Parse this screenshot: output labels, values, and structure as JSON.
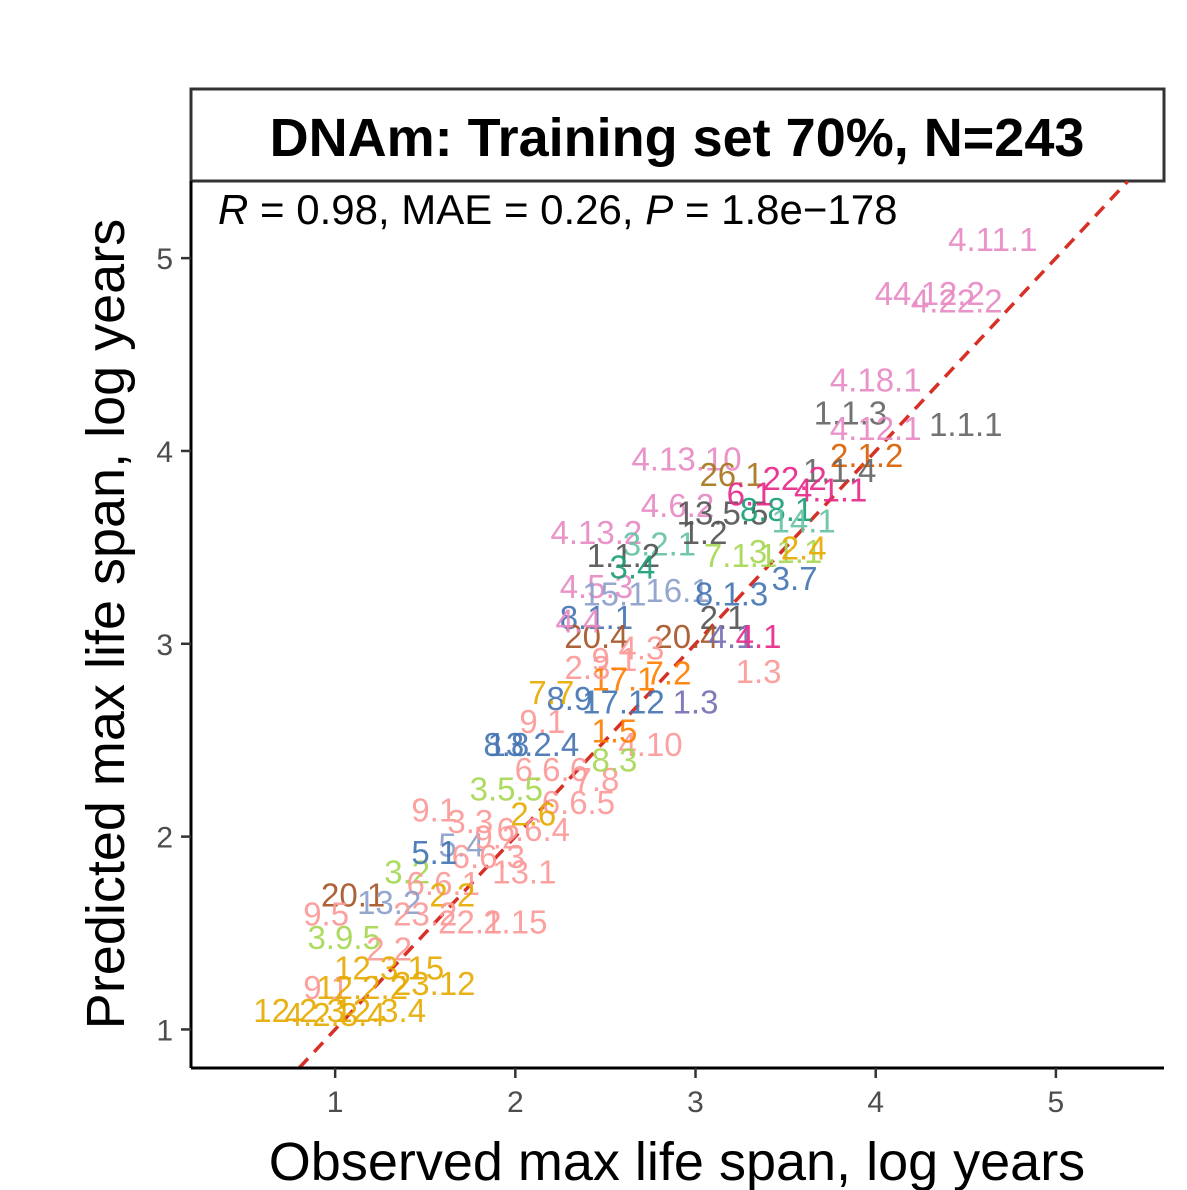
{
  "chart_data": {
    "type": "scatter",
    "title": "DNAm: Training set 70%, N=243",
    "stats": {
      "r_label": "R",
      "r_text": " = 0.98, MAE = 0.26, ",
      "p_label": "P",
      "p_text": " = 1.8e−178"
    },
    "xlabel": "Observed max life span, log years",
    "ylabel": "Predicted max life span, log years",
    "xlim": [
      0.2,
      5.6
    ],
    "ylim": [
      0.8,
      5.4
    ],
    "x_ticks": [
      "1",
      "2",
      "3",
      "4",
      "5"
    ],
    "y_ticks": [
      "1",
      "2",
      "3",
      "4",
      "5"
    ],
    "reference_line": {
      "type": "identity",
      "color": "#d73027",
      "style": "dashed"
    },
    "grid": false,
    "points": [
      {
        "label": "4.11.1",
        "x": 4.65,
        "y": 5.1,
        "color": "#e78ac3"
      },
      {
        "label": "44.12.2",
        "x": 4.3,
        "y": 4.82,
        "color": "#e78ac3"
      },
      {
        "label": "4.22.2",
        "x": 4.45,
        "y": 4.78,
        "color": "#e78ac3"
      },
      {
        "label": "4.18.1",
        "x": 4.0,
        "y": 4.37,
        "color": "#e78ac3"
      },
      {
        "label": "1.1.3",
        "x": 3.86,
        "y": 4.2,
        "color": "#666666"
      },
      {
        "label": "1.1.1",
        "x": 4.5,
        "y": 4.14,
        "color": "#666666"
      },
      {
        "label": "4.12.1",
        "x": 4.0,
        "y": 4.12,
        "color": "#e78ac3"
      },
      {
        "label": "2.1.2",
        "x": 3.95,
        "y": 3.98,
        "color": "#d95f02"
      },
      {
        "label": "1.1.4",
        "x": 3.8,
        "y": 3.9,
        "color": "#666666"
      },
      {
        "label": "4.13.10",
        "x": 2.95,
        "y": 3.96,
        "color": "#e78ac3"
      },
      {
        "label": "26.1",
        "x": 3.2,
        "y": 3.88,
        "color": "#a6761d"
      },
      {
        "label": "22.2",
        "x": 3.55,
        "y": 3.86,
        "color": "#e7298a"
      },
      {
        "label": "4.1.1",
        "x": 3.75,
        "y": 3.8,
        "color": "#e7298a"
      },
      {
        "label": "4.6.2",
        "x": 2.9,
        "y": 3.72,
        "color": "#e78ac3"
      },
      {
        "label": "13.5.5",
        "x": 3.15,
        "y": 3.68,
        "color": "#555555"
      },
      {
        "label": "8.8.1",
        "x": 3.45,
        "y": 3.7,
        "color": "#1b9e77"
      },
      {
        "label": "14.1",
        "x": 3.6,
        "y": 3.64,
        "color": "#66c2a5"
      },
      {
        "label": "4.13.2",
        "x": 2.45,
        "y": 3.58,
        "color": "#e78ac3"
      },
      {
        "label": "3.2.1",
        "x": 2.8,
        "y": 3.52,
        "color": "#66c2a5"
      },
      {
        "label": "1.1.2",
        "x": 2.6,
        "y": 3.46,
        "color": "#555555"
      },
      {
        "label": "7.1.1",
        "x": 3.25,
        "y": 3.46,
        "color": "#a6d854"
      },
      {
        "label": "3.1.1",
        "x": 3.5,
        "y": 3.48,
        "color": "#a6d854"
      },
      {
        "label": "2.4",
        "x": 3.6,
        "y": 3.5,
        "color": "#e6ab02"
      },
      {
        "label": "4.5.3",
        "x": 2.45,
        "y": 3.3,
        "color": "#e78ac3"
      },
      {
        "label": "15.1",
        "x": 2.55,
        "y": 3.26,
        "color": "#8da0cb"
      },
      {
        "label": "16.1",
        "x": 2.9,
        "y": 3.28,
        "color": "#8da0cb"
      },
      {
        "label": "8.1.3",
        "x": 3.2,
        "y": 3.26,
        "color": "#4575b4"
      },
      {
        "label": "3.7",
        "x": 3.55,
        "y": 3.34,
        "color": "#4575b4"
      },
      {
        "label": "8.1.1",
        "x": 2.45,
        "y": 3.14,
        "color": "#4575b4"
      },
      {
        "label": "2.1",
        "x": 3.15,
        "y": 3.14,
        "color": "#555555"
      },
      {
        "label": "20.4",
        "x": 2.45,
        "y": 3.04,
        "color": "#a65628"
      },
      {
        "label": "20.4",
        "x": 2.95,
        "y": 3.04,
        "color": "#a65628"
      },
      {
        "label": "4.1",
        "x": 3.2,
        "y": 3.04,
        "color": "#7570b3"
      },
      {
        "label": "4.1",
        "x": 3.35,
        "y": 3.04,
        "color": "#e7298a"
      },
      {
        "label": "9.1",
        "x": 2.55,
        "y": 2.92,
        "color": "#fb9a99"
      },
      {
        "label": "17.1",
        "x": 2.6,
        "y": 2.82,
        "color": "#ff7f00"
      },
      {
        "label": "7.2",
        "x": 2.85,
        "y": 2.85,
        "color": "#ff7f00"
      },
      {
        "label": "1.3",
        "x": 3.35,
        "y": 2.86,
        "color": "#fb9a99"
      },
      {
        "label": "8.9",
        "x": 2.3,
        "y": 2.72,
        "color": "#4575b4"
      },
      {
        "label": "17.12",
        "x": 2.6,
        "y": 2.7,
        "color": "#4575b4"
      },
      {
        "label": "1.3",
        "x": 3.0,
        "y": 2.7,
        "color": "#7570b3"
      },
      {
        "label": "9.1",
        "x": 2.15,
        "y": 2.6,
        "color": "#fb9a99"
      },
      {
        "label": "8.8",
        "x": 1.95,
        "y": 2.48,
        "color": "#4575b4"
      },
      {
        "label": "13.2.4",
        "x": 2.1,
        "y": 2.48,
        "color": "#4575b4"
      },
      {
        "label": "4.10",
        "x": 2.75,
        "y": 2.48,
        "color": "#fb9a99"
      },
      {
        "label": "6.6.6",
        "x": 2.2,
        "y": 2.35,
        "color": "#fb9a99"
      },
      {
        "label": "7.8",
        "x": 2.45,
        "y": 2.3,
        "color": "#fb9a99"
      },
      {
        "label": "3.5.5",
        "x": 1.95,
        "y": 2.25,
        "color": "#a6d854"
      },
      {
        "label": "6.6.5",
        "x": 2.35,
        "y": 2.18,
        "color": "#fb9a99"
      },
      {
        "label": "9.1",
        "x": 1.55,
        "y": 2.14,
        "color": "#fb9a99"
      },
      {
        "label": "3.3",
        "x": 1.75,
        "y": 2.08,
        "color": "#fb9a99"
      },
      {
        "label": "6.6.4",
        "x": 2.1,
        "y": 2.04,
        "color": "#fb9a99"
      },
      {
        "label": "5.4",
        "x": 1.7,
        "y": 1.96,
        "color": "#8da0cb"
      },
      {
        "label": "6.6.3",
        "x": 1.85,
        "y": 1.9,
        "color": "#fb9a99"
      },
      {
        "label": "3.2",
        "x": 1.4,
        "y": 1.82,
        "color": "#a6d854"
      },
      {
        "label": "6.6.1",
        "x": 1.6,
        "y": 1.76,
        "color": "#fb9a99"
      },
      {
        "label": "2.2",
        "x": 1.65,
        "y": 1.7,
        "color": "#e6ab02"
      },
      {
        "label": "20.1",
        "x": 1.1,
        "y": 1.7,
        "color": "#a65628"
      },
      {
        "label": "13.2",
        "x": 1.3,
        "y": 1.66,
        "color": "#8da0cb"
      },
      {
        "label": "9.5",
        "x": 0.95,
        "y": 1.6,
        "color": "#fb9a99"
      },
      {
        "label": "23.2",
        "x": 1.5,
        "y": 1.6,
        "color": "#fb9a99"
      },
      {
        "label": "22.1",
        "x": 1.75,
        "y": 1.56,
        "color": "#fb9a99"
      },
      {
        "label": "2.15",
        "x": 2.0,
        "y": 1.56,
        "color": "#fb9a99"
      },
      {
        "label": "3.9.5",
        "x": 1.05,
        "y": 1.48,
        "color": "#a6d854"
      },
      {
        "label": "2.2",
        "x": 1.3,
        "y": 1.42,
        "color": "#fb9a99"
      },
      {
        "label": "12.3.15",
        "x": 1.3,
        "y": 1.32,
        "color": "#e6ab02"
      },
      {
        "label": "9.1",
        "x": 0.95,
        "y": 1.22,
        "color": "#fb9a99"
      },
      {
        "label": "12.2.2",
        "x": 1.15,
        "y": 1.22,
        "color": "#e6ab02"
      },
      {
        "label": "23.12",
        "x": 1.55,
        "y": 1.24,
        "color": "#e6ab02"
      },
      {
        "label": "12.2.3",
        "x": 0.8,
        "y": 1.1,
        "color": "#e6ab02"
      },
      {
        "label": "4.2.3.4",
        "x": 1.0,
        "y": 1.08,
        "color": "#e6ab02"
      },
      {
        "label": "12.3.4",
        "x": 1.25,
        "y": 1.1,
        "color": "#e6ab02"
      },
      {
        "label": "13.1",
        "x": 2.05,
        "y": 1.82,
        "color": "#fb9a99"
      },
      {
        "label": "9.2",
        "x": 1.9,
        "y": 2.0,
        "color": "#fb9a99"
      },
      {
        "label": "1.5",
        "x": 2.55,
        "y": 2.55,
        "color": "#ff7f00"
      },
      {
        "label": "4.3",
        "x": 2.7,
        "y": 2.98,
        "color": "#fb9a99"
      },
      {
        "label": "2.3",
        "x": 2.4,
        "y": 2.88,
        "color": "#fb9a99"
      },
      {
        "label": "3.4",
        "x": 2.65,
        "y": 3.4,
        "color": "#1b9e77"
      },
      {
        "label": "4.4",
        "x": 2.35,
        "y": 3.12,
        "color": "#e78ac3"
      },
      {
        "label": "1.2",
        "x": 3.05,
        "y": 3.58,
        "color": "#555555"
      },
      {
        "label": "6.1",
        "x": 3.3,
        "y": 3.78,
        "color": "#e7298a"
      },
      {
        "label": "2.6",
        "x": 2.1,
        "y": 2.12,
        "color": "#e6ab02"
      },
      {
        "label": "5.1",
        "x": 1.55,
        "y": 1.92,
        "color": "#4575b4"
      },
      {
        "label": "7.7",
        "x": 2.2,
        "y": 2.75,
        "color": "#e6ab02"
      },
      {
        "label": "8.3",
        "x": 2.55,
        "y": 2.4,
        "color": "#a6d854"
      }
    ]
  }
}
